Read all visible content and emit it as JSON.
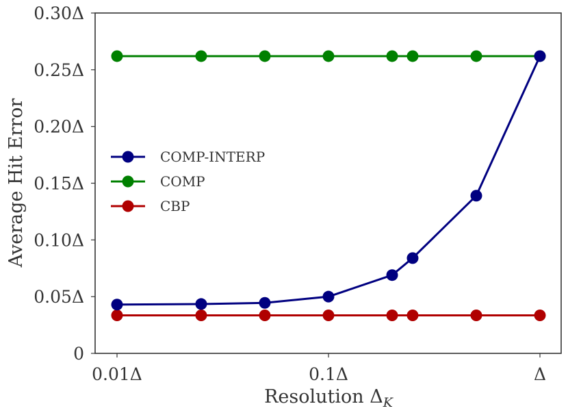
{
  "chart_data": {
    "type": "line",
    "title": "",
    "xlabel": "Resolution ΔK",
    "xlabel_main": "Resolution Δ",
    "xlabel_sub": "K",
    "ylabel": "Average Hit Error",
    "xscale": "log",
    "xlim": [
      0.008,
      1.1
    ],
    "ylim": [
      0,
      0.3
    ],
    "grid": false,
    "legend_position": "center-left",
    "x_ticks": [
      {
        "value": 0.01,
        "label": "0.01Δ"
      },
      {
        "value": 0.1,
        "label": "0.1Δ"
      },
      {
        "value": 1,
        "label": "Δ"
      }
    ],
    "y_ticks": [
      {
        "value": 0,
        "label": "0"
      },
      {
        "value": 0.05,
        "label": "0.05Δ"
      },
      {
        "value": 0.1,
        "label": "0.10Δ"
      },
      {
        "value": 0.15,
        "label": "0.15Δ"
      },
      {
        "value": 0.2,
        "label": "0.20Δ"
      },
      {
        "value": 0.25,
        "label": "0.25Δ"
      },
      {
        "value": 0.3,
        "label": "0.30Δ"
      }
    ],
    "x": [
      0.01,
      0.025,
      0.05,
      0.1,
      0.2,
      0.25,
      0.5,
      1.0
    ],
    "series": [
      {
        "name": "COMP-INTERP",
        "color": "#000080",
        "values": [
          0.043,
          0.0435,
          0.0445,
          0.05,
          0.069,
          0.084,
          0.139,
          0.262
        ]
      },
      {
        "name": "COMP",
        "color": "#008000",
        "values": [
          0.262,
          0.262,
          0.262,
          0.262,
          0.262,
          0.262,
          0.262,
          0.262
        ]
      },
      {
        "name": "CBP",
        "color": "#b00000",
        "values": [
          0.0335,
          0.0335,
          0.0335,
          0.0335,
          0.0335,
          0.0335,
          0.0335,
          0.0335
        ]
      }
    ]
  }
}
